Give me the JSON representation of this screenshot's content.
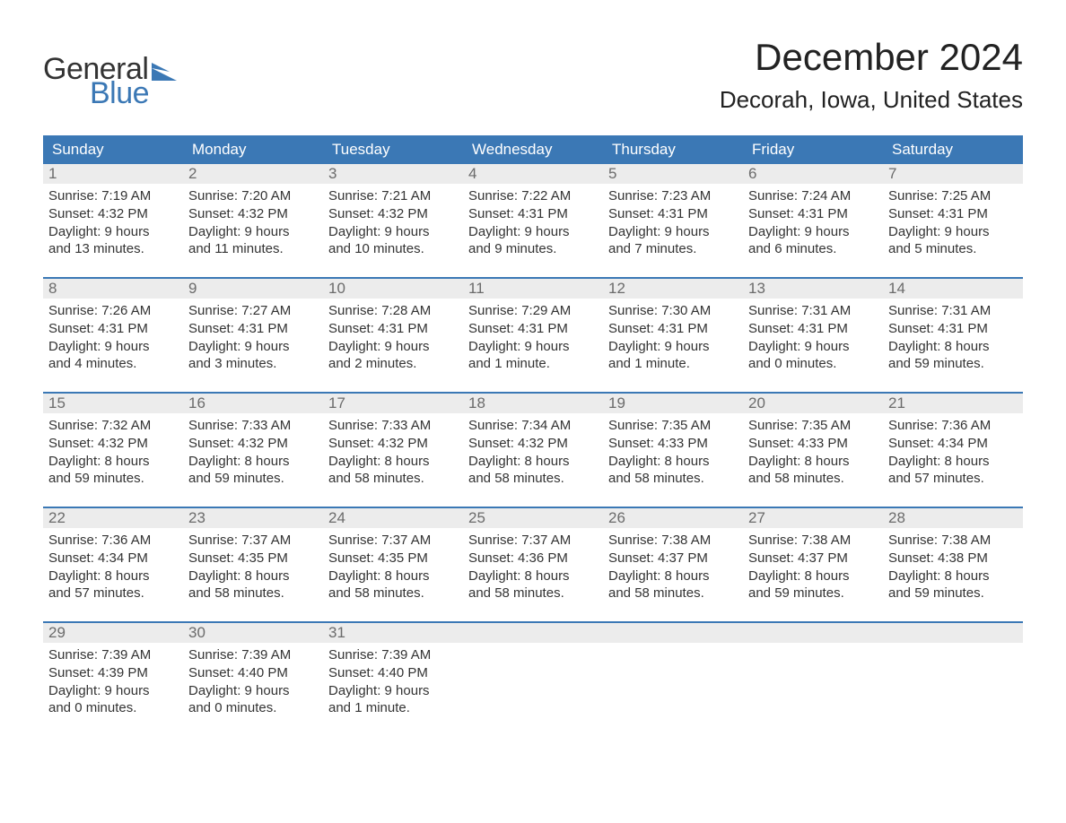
{
  "brand": {
    "general": "General",
    "blue": "Blue",
    "flag_color": "#3b78b5"
  },
  "title": "December 2024",
  "location": "Decorah, Iowa, United States",
  "colors": {
    "header_bg": "#3b78b5",
    "header_text": "#ffffff",
    "daynum_bg": "#ececec",
    "daynum_text": "#6b6b6b",
    "body_text": "#333333",
    "rule": "#3b78b5",
    "page_bg": "#ffffff"
  },
  "typography": {
    "title_fontsize": 42,
    "location_fontsize": 26,
    "dow_fontsize": 17,
    "daynum_fontsize": 17,
    "body_fontsize": 15
  },
  "days_of_week": [
    "Sunday",
    "Monday",
    "Tuesday",
    "Wednesday",
    "Thursday",
    "Friday",
    "Saturday"
  ],
  "weeks": [
    [
      {
        "n": "1",
        "sunrise": "Sunrise: 7:19 AM",
        "sunset": "Sunset: 4:32 PM",
        "d1": "Daylight: 9 hours",
        "d2": "and 13 minutes."
      },
      {
        "n": "2",
        "sunrise": "Sunrise: 7:20 AM",
        "sunset": "Sunset: 4:32 PM",
        "d1": "Daylight: 9 hours",
        "d2": "and 11 minutes."
      },
      {
        "n": "3",
        "sunrise": "Sunrise: 7:21 AM",
        "sunset": "Sunset: 4:32 PM",
        "d1": "Daylight: 9 hours",
        "d2": "and 10 minutes."
      },
      {
        "n": "4",
        "sunrise": "Sunrise: 7:22 AM",
        "sunset": "Sunset: 4:31 PM",
        "d1": "Daylight: 9 hours",
        "d2": "and 9 minutes."
      },
      {
        "n": "5",
        "sunrise": "Sunrise: 7:23 AM",
        "sunset": "Sunset: 4:31 PM",
        "d1": "Daylight: 9 hours",
        "d2": "and 7 minutes."
      },
      {
        "n": "6",
        "sunrise": "Sunrise: 7:24 AM",
        "sunset": "Sunset: 4:31 PM",
        "d1": "Daylight: 9 hours",
        "d2": "and 6 minutes."
      },
      {
        "n": "7",
        "sunrise": "Sunrise: 7:25 AM",
        "sunset": "Sunset: 4:31 PM",
        "d1": "Daylight: 9 hours",
        "d2": "and 5 minutes."
      }
    ],
    [
      {
        "n": "8",
        "sunrise": "Sunrise: 7:26 AM",
        "sunset": "Sunset: 4:31 PM",
        "d1": "Daylight: 9 hours",
        "d2": "and 4 minutes."
      },
      {
        "n": "9",
        "sunrise": "Sunrise: 7:27 AM",
        "sunset": "Sunset: 4:31 PM",
        "d1": "Daylight: 9 hours",
        "d2": "and 3 minutes."
      },
      {
        "n": "10",
        "sunrise": "Sunrise: 7:28 AM",
        "sunset": "Sunset: 4:31 PM",
        "d1": "Daylight: 9 hours",
        "d2": "and 2 minutes."
      },
      {
        "n": "11",
        "sunrise": "Sunrise: 7:29 AM",
        "sunset": "Sunset: 4:31 PM",
        "d1": "Daylight: 9 hours",
        "d2": "and 1 minute."
      },
      {
        "n": "12",
        "sunrise": "Sunrise: 7:30 AM",
        "sunset": "Sunset: 4:31 PM",
        "d1": "Daylight: 9 hours",
        "d2": "and 1 minute."
      },
      {
        "n": "13",
        "sunrise": "Sunrise: 7:31 AM",
        "sunset": "Sunset: 4:31 PM",
        "d1": "Daylight: 9 hours",
        "d2": "and 0 minutes."
      },
      {
        "n": "14",
        "sunrise": "Sunrise: 7:31 AM",
        "sunset": "Sunset: 4:31 PM",
        "d1": "Daylight: 8 hours",
        "d2": "and 59 minutes."
      }
    ],
    [
      {
        "n": "15",
        "sunrise": "Sunrise: 7:32 AM",
        "sunset": "Sunset: 4:32 PM",
        "d1": "Daylight: 8 hours",
        "d2": "and 59 minutes."
      },
      {
        "n": "16",
        "sunrise": "Sunrise: 7:33 AM",
        "sunset": "Sunset: 4:32 PM",
        "d1": "Daylight: 8 hours",
        "d2": "and 59 minutes."
      },
      {
        "n": "17",
        "sunrise": "Sunrise: 7:33 AM",
        "sunset": "Sunset: 4:32 PM",
        "d1": "Daylight: 8 hours",
        "d2": "and 58 minutes."
      },
      {
        "n": "18",
        "sunrise": "Sunrise: 7:34 AM",
        "sunset": "Sunset: 4:32 PM",
        "d1": "Daylight: 8 hours",
        "d2": "and 58 minutes."
      },
      {
        "n": "19",
        "sunrise": "Sunrise: 7:35 AM",
        "sunset": "Sunset: 4:33 PM",
        "d1": "Daylight: 8 hours",
        "d2": "and 58 minutes."
      },
      {
        "n": "20",
        "sunrise": "Sunrise: 7:35 AM",
        "sunset": "Sunset: 4:33 PM",
        "d1": "Daylight: 8 hours",
        "d2": "and 58 minutes."
      },
      {
        "n": "21",
        "sunrise": "Sunrise: 7:36 AM",
        "sunset": "Sunset: 4:34 PM",
        "d1": "Daylight: 8 hours",
        "d2": "and 57 minutes."
      }
    ],
    [
      {
        "n": "22",
        "sunrise": "Sunrise: 7:36 AM",
        "sunset": "Sunset: 4:34 PM",
        "d1": "Daylight: 8 hours",
        "d2": "and 57 minutes."
      },
      {
        "n": "23",
        "sunrise": "Sunrise: 7:37 AM",
        "sunset": "Sunset: 4:35 PM",
        "d1": "Daylight: 8 hours",
        "d2": "and 58 minutes."
      },
      {
        "n": "24",
        "sunrise": "Sunrise: 7:37 AM",
        "sunset": "Sunset: 4:35 PM",
        "d1": "Daylight: 8 hours",
        "d2": "and 58 minutes."
      },
      {
        "n": "25",
        "sunrise": "Sunrise: 7:37 AM",
        "sunset": "Sunset: 4:36 PM",
        "d1": "Daylight: 8 hours",
        "d2": "and 58 minutes."
      },
      {
        "n": "26",
        "sunrise": "Sunrise: 7:38 AM",
        "sunset": "Sunset: 4:37 PM",
        "d1": "Daylight: 8 hours",
        "d2": "and 58 minutes."
      },
      {
        "n": "27",
        "sunrise": "Sunrise: 7:38 AM",
        "sunset": "Sunset: 4:37 PM",
        "d1": "Daylight: 8 hours",
        "d2": "and 59 minutes."
      },
      {
        "n": "28",
        "sunrise": "Sunrise: 7:38 AM",
        "sunset": "Sunset: 4:38 PM",
        "d1": "Daylight: 8 hours",
        "d2": "and 59 minutes."
      }
    ],
    [
      {
        "n": "29",
        "sunrise": "Sunrise: 7:39 AM",
        "sunset": "Sunset: 4:39 PM",
        "d1": "Daylight: 9 hours",
        "d2": "and 0 minutes."
      },
      {
        "n": "30",
        "sunrise": "Sunrise: 7:39 AM",
        "sunset": "Sunset: 4:40 PM",
        "d1": "Daylight: 9 hours",
        "d2": "and 0 minutes."
      },
      {
        "n": "31",
        "sunrise": "Sunrise: 7:39 AM",
        "sunset": "Sunset: 4:40 PM",
        "d1": "Daylight: 9 hours",
        "d2": "and 1 minute."
      },
      null,
      null,
      null,
      null
    ]
  ]
}
